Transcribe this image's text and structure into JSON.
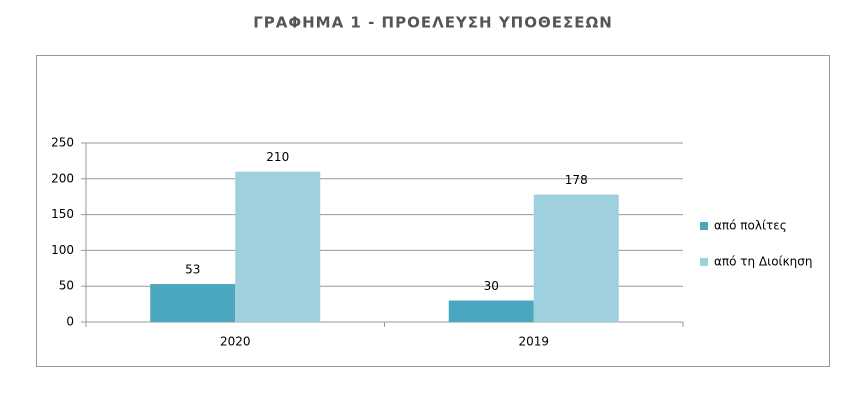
{
  "chart_data": {
    "type": "bar",
    "title": "ΓΡΑΦΗΜΑ 1 - ΠΡΟΕΛΕΥΣΗ ΥΠΟΘΕΣΕΩΝ",
    "categories": [
      "2020",
      "2019"
    ],
    "series": [
      {
        "name": "από πολίτες",
        "color": "#4ba6bf",
        "values": [
          53,
          30
        ]
      },
      {
        "name": "από τη Διοίκηση",
        "color": "#9fd0de",
        "values": [
          210,
          178
        ]
      }
    ],
    "ylim": [
      0,
      250
    ],
    "yticks": [
      0,
      50,
      100,
      150,
      200,
      250
    ],
    "grid": true,
    "legend": "right"
  }
}
